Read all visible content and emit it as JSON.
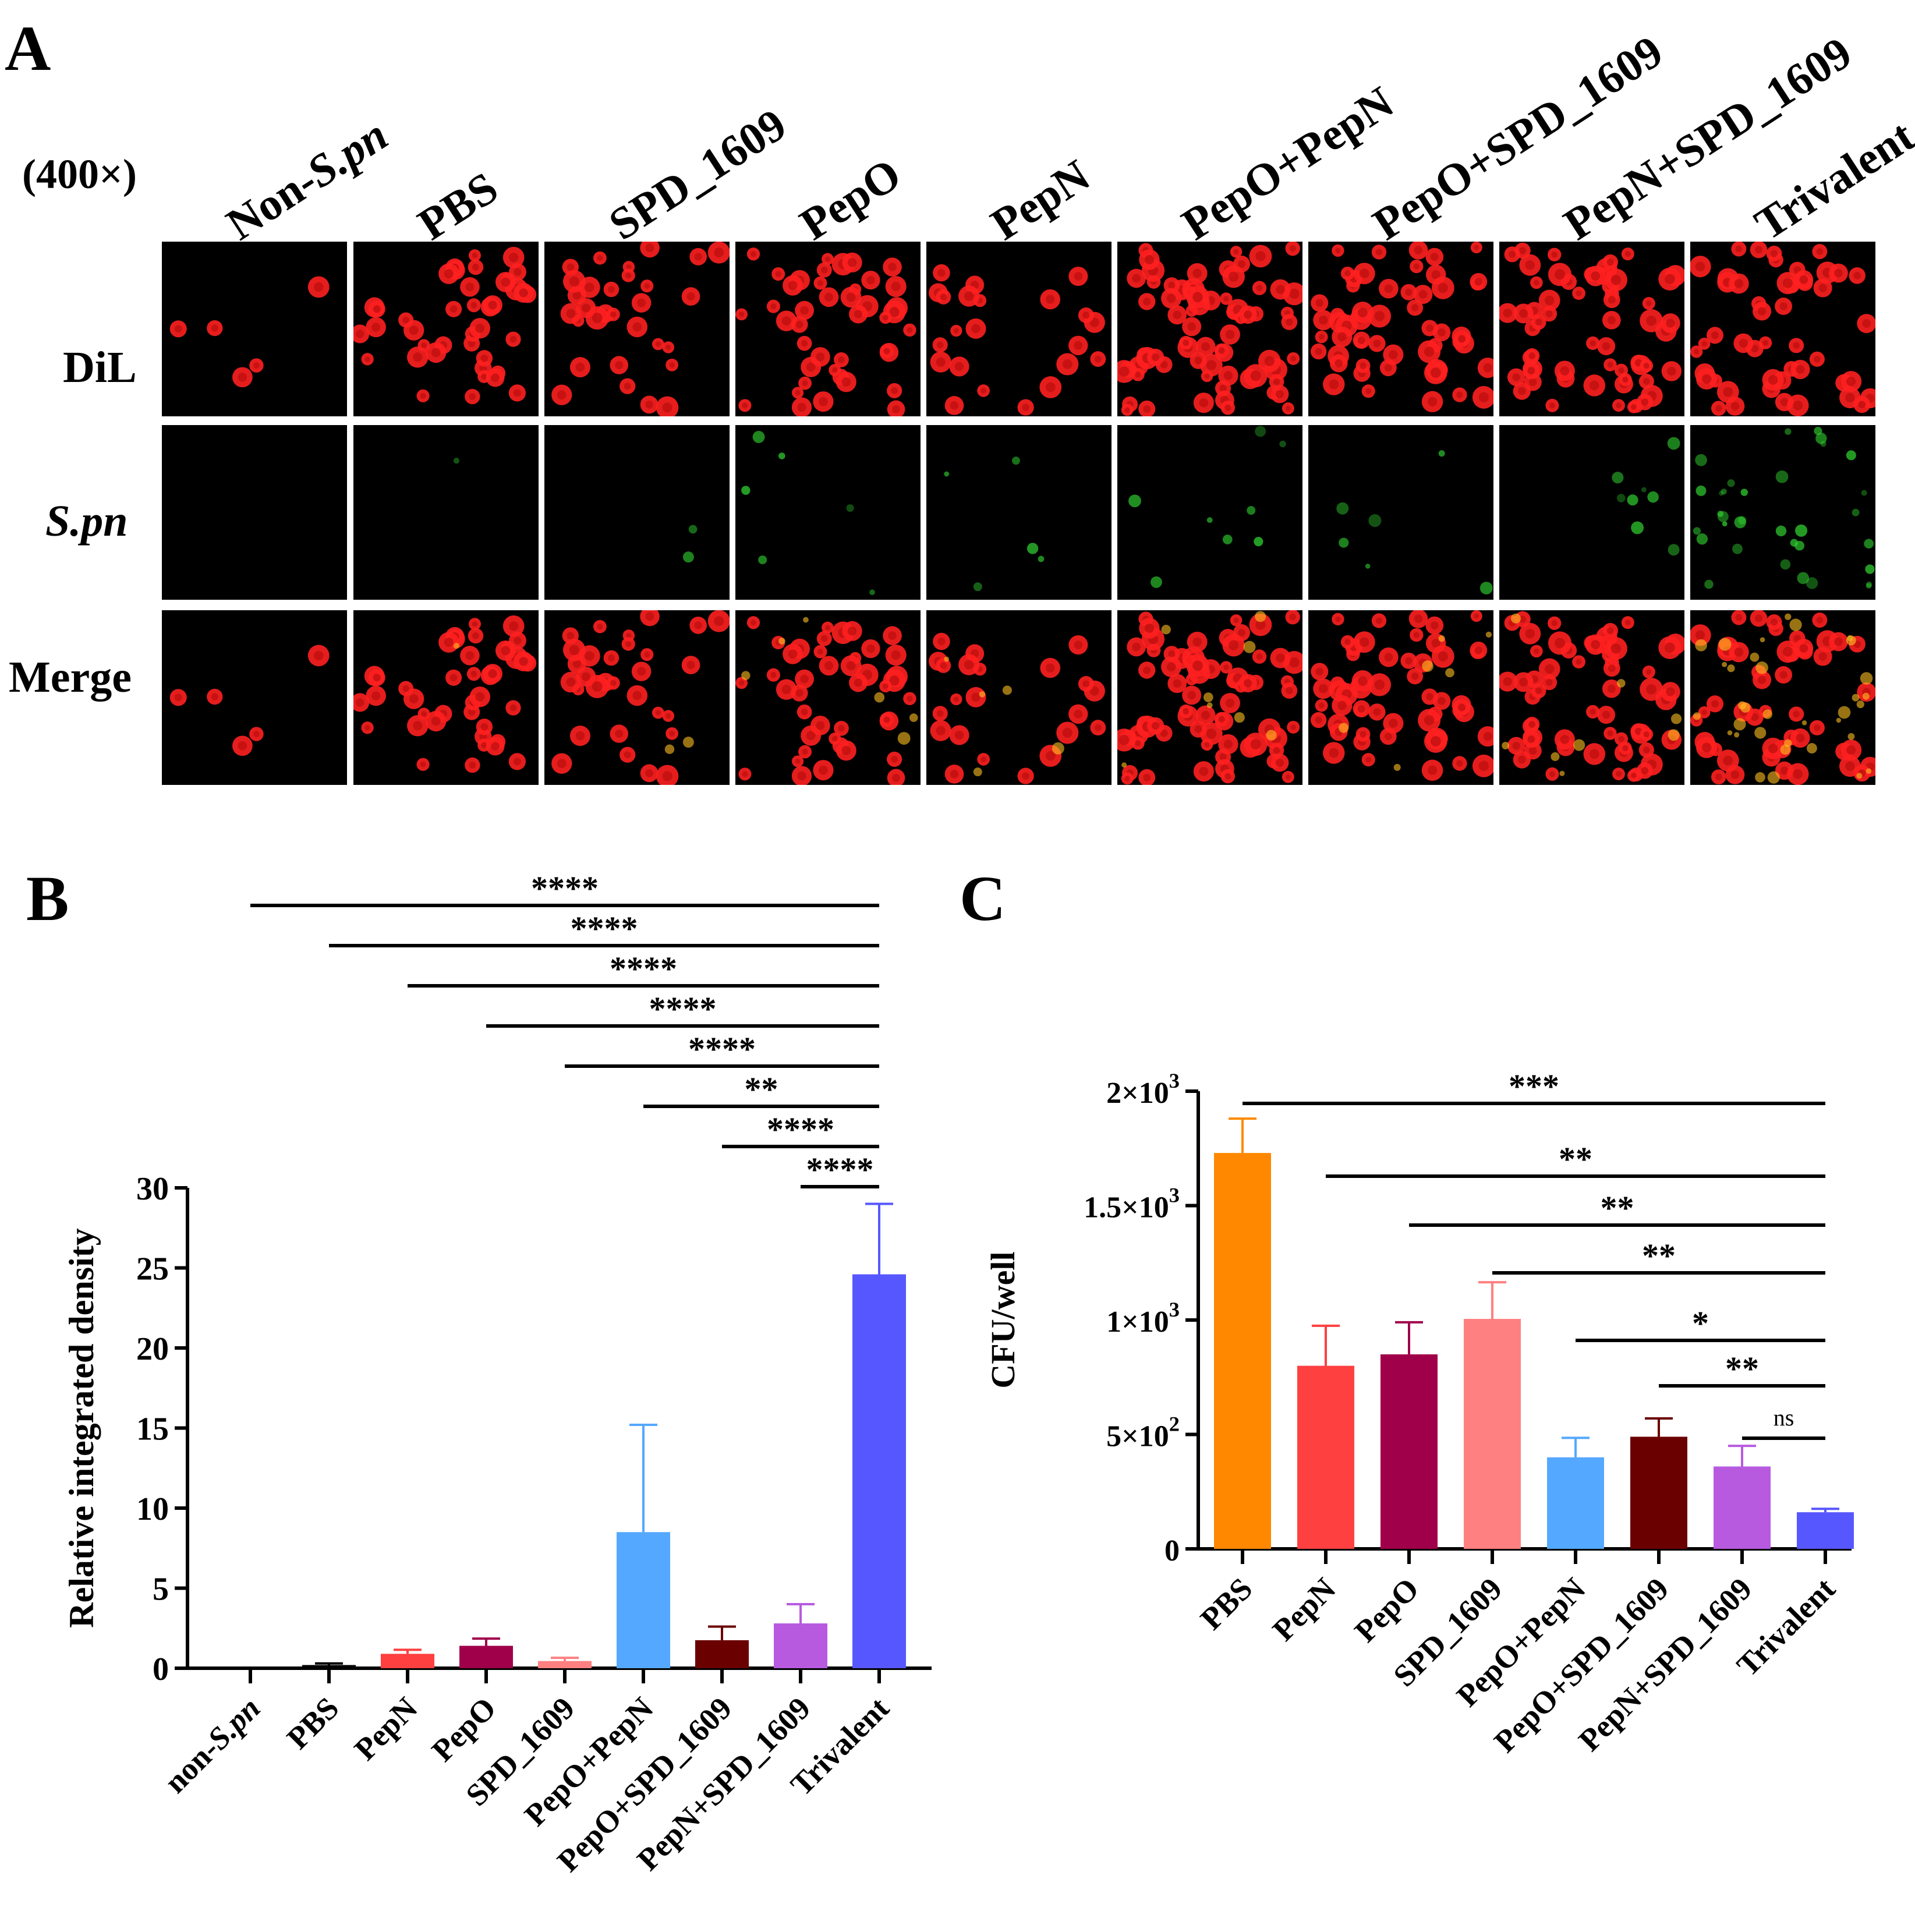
{
  "panel_a": {
    "letter": "A",
    "magnification": "(400×)",
    "column_headers": [
      {
        "pre": "Non-",
        "italic": "S.pn",
        "post": ""
      },
      {
        "pre": "PBS",
        "italic": "",
        "post": ""
      },
      {
        "pre": "SPD_1609",
        "italic": "",
        "post": ""
      },
      {
        "pre": "PepO",
        "italic": "",
        "post": ""
      },
      {
        "pre": "PepN",
        "italic": "",
        "post": ""
      },
      {
        "pre": "PepO+PepN",
        "italic": "",
        "post": ""
      },
      {
        "pre": "PepO+SPD_1609",
        "italic": "",
        "post": ""
      },
      {
        "pre": "PepN+SPD_1609",
        "italic": "",
        "post": ""
      },
      {
        "pre": "Trivalent",
        "italic": "",
        "post": ""
      }
    ],
    "row_labels": [
      "DiL",
      "S.pn",
      "Merge"
    ],
    "cell_density": [
      [
        5,
        40,
        30,
        42,
        22,
        70,
        55,
        60,
        48
      ],
      [
        0,
        1,
        2,
        6,
        5,
        8,
        6,
        8,
        34
      ],
      [
        5,
        40,
        30,
        42,
        22,
        70,
        55,
        60,
        48
      ]
    ],
    "colors": {
      "dil": "#ff2020",
      "spn": "#30d030",
      "merge_overlap": "#ffc020",
      "background": "#000000"
    }
  },
  "chart_data": [
    {
      "panel": "B",
      "type": "bar",
      "ylabel": "Relative integrated density",
      "ylim": [
        0,
        30
      ],
      "yticks": [
        "0",
        "5",
        "10",
        "15",
        "20",
        "25",
        "30"
      ],
      "categories": [
        "non-S.pn",
        "PBS",
        "PepN",
        "PepO",
        "SPD_1609",
        "PepO+PepN",
        "PepO+SPD_1609",
        "PepN+SPD_1609",
        "Trivalent"
      ],
      "category_italic_part": [
        "S.pn",
        "",
        "",
        "",
        "",
        "",
        "",
        "",
        ""
      ],
      "values": [
        0.05,
        0.2,
        0.9,
        1.4,
        0.45,
        8.5,
        1.75,
        2.8,
        24.6
      ],
      "errors": [
        0,
        0.1,
        0.25,
        0.45,
        0.2,
        6.7,
        0.85,
        1.2,
        4.4
      ],
      "colors": [
        "#000000",
        "#000000",
        "#ff4040",
        "#a0004a",
        "#ff8080",
        "#55a8ff",
        "#6b0000",
        "#b85ae0",
        "#5757ff"
      ],
      "comparisons": [
        {
          "from": 0,
          "to": 8,
          "label": "****"
        },
        {
          "from": 1,
          "to": 8,
          "label": "****"
        },
        {
          "from": 2,
          "to": 8,
          "label": "****"
        },
        {
          "from": 3,
          "to": 8,
          "label": "****"
        },
        {
          "from": 4,
          "to": 8,
          "label": "****"
        },
        {
          "from": 5,
          "to": 8,
          "label": "**"
        },
        {
          "from": 6,
          "to": 8,
          "label": "****"
        },
        {
          "from": 7,
          "to": 8,
          "label": "****"
        }
      ]
    },
    {
      "panel": "C",
      "type": "bar",
      "ylabel": "CFU/well",
      "ylim": [
        0,
        2000
      ],
      "yticks": [
        {
          "value": 0,
          "base": "0",
          "exp": ""
        },
        {
          "value": 500,
          "base": "5×10",
          "exp": "2"
        },
        {
          "value": 1000,
          "base": "1×10",
          "exp": "3"
        },
        {
          "value": 1500,
          "base": "1.5×10",
          "exp": "3"
        },
        {
          "value": 2000,
          "base": "2×10",
          "exp": "3"
        }
      ],
      "categories": [
        "PBS",
        "PepN",
        "PepO",
        "SPD_1609",
        "PepO+PepN",
        "PepO+SPD_1609",
        "PepN+SPD_1609",
        "Trivalent"
      ],
      "values": [
        1730,
        800,
        850,
        1005,
        400,
        490,
        360,
        160
      ],
      "errors": [
        150,
        175,
        140,
        160,
        85,
        80,
        90,
        15
      ],
      "colors": [
        "#ff8800",
        "#ff4040",
        "#a0004a",
        "#ff8080",
        "#55a8ff",
        "#6b0000",
        "#b85ae0",
        "#5757ff"
      ],
      "comparisons": [
        {
          "from": 0,
          "to": 7,
          "label": "***"
        },
        {
          "from": 1,
          "to": 7,
          "label": "**"
        },
        {
          "from": 2,
          "to": 7,
          "label": "**"
        },
        {
          "from": 3,
          "to": 7,
          "label": "**"
        },
        {
          "from": 4,
          "to": 7,
          "label": "*"
        },
        {
          "from": 5,
          "to": 7,
          "label": "**"
        },
        {
          "from": 6,
          "to": 7,
          "label": "ns"
        }
      ]
    }
  ]
}
